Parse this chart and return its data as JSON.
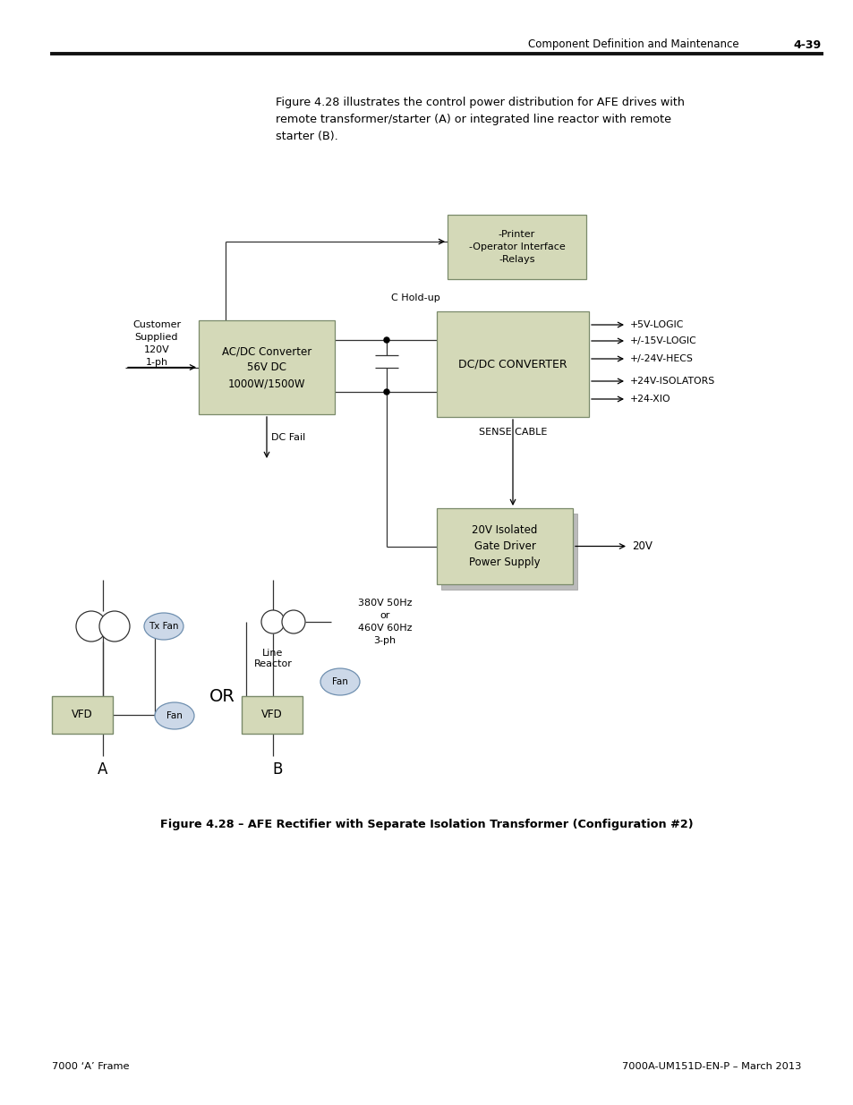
{
  "page_header_text": "Component Definition and Maintenance",
  "page_number": "4-39",
  "footer_left": "7000 ‘A’ Frame",
  "footer_right": "7000A-UM151D-EN-P – March 2013",
  "intro_text": "Figure 4.28 illustrates the control power distribution for AFE drives with\nremote transformer/starter (A) or integrated line reactor with remote\nstarter (B).",
  "caption": "Figure 4.28 – AFE Rectifier with Separate Isolation Transformer (Configuration #2)",
  "box_color": "#d4d9b8",
  "box_edge": "#7a8a6a",
  "shadow_color": "#aaaaaa",
  "bg_color": "#ffffff",
  "text_color": "#000000",
  "line_color": "#333333",
  "output_labels": [
    "+5V-LOGIC",
    "+/-15V-LOGIC",
    "+/-24V-HECS",
    "+24V-ISOLATORS",
    "+24-XIO"
  ],
  "fan_color": "#ccd8e8",
  "fan_edge": "#7090b0"
}
